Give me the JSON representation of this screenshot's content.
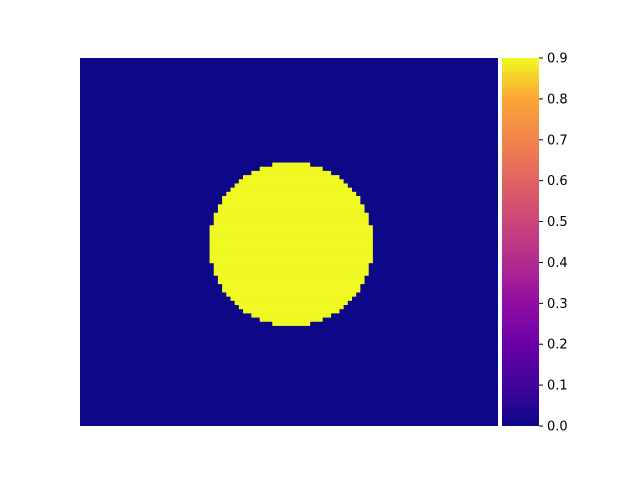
{
  "chart_data": {
    "type": "heatmap",
    "description_values": "Binary field: background value 0.0, filled disc value 0.9",
    "background_value": 0.0,
    "disc_value": 0.9,
    "grid": {
      "cols": 100,
      "rows": 88
    },
    "disc": {
      "center_col": 50,
      "center_row": 44,
      "radius_cells": 19.5
    },
    "colormap": "plasma",
    "colors": {
      "background": "#0d0887",
      "disc": "#f0f921"
    },
    "colorbar": {
      "vmin": 0.0,
      "vmax": 0.9,
      "tick_values": [
        0.0,
        0.1,
        0.2,
        0.3,
        0.4,
        0.5,
        0.6,
        0.7,
        0.8,
        0.9
      ],
      "tick_labels": [
        "0.0",
        "0.1",
        "0.2",
        "0.3",
        "0.4",
        "0.5",
        "0.6",
        "0.7",
        "0.8",
        "0.9"
      ]
    },
    "axes_visible": false
  }
}
